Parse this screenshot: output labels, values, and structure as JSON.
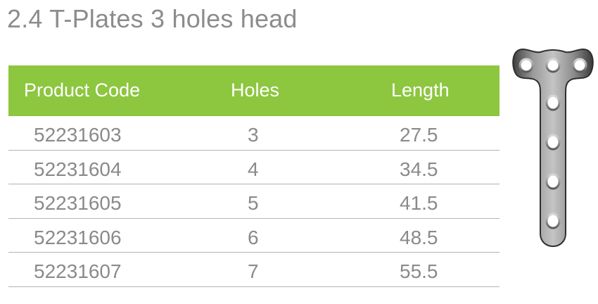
{
  "title": "2.4 T-Plates 3 holes head",
  "table": {
    "headers": {
      "code": "Product Code",
      "holes": "Holes",
      "length": "Length"
    },
    "rows": [
      {
        "code": "52231603",
        "holes": "3",
        "length": "27.5"
      },
      {
        "code": "52231604",
        "holes": "4",
        "length": "34.5"
      },
      {
        "code": "52231605",
        "holes": "5",
        "length": "41.5"
      },
      {
        "code": "52231606",
        "holes": "6",
        "length": "48.5"
      },
      {
        "code": "52231607",
        "holes": "7",
        "length": "55.5"
      }
    ]
  },
  "colors": {
    "header_bg": "#8dc63f",
    "header_text": "#ffffff",
    "title_text": "#8c8c8c",
    "cell_text": "#8a8a8a",
    "divider": "#b3b3b3",
    "plate_metal": "#7a7a7a"
  },
  "image": {
    "icon": "t-plate-3-hole-head-icon"
  }
}
